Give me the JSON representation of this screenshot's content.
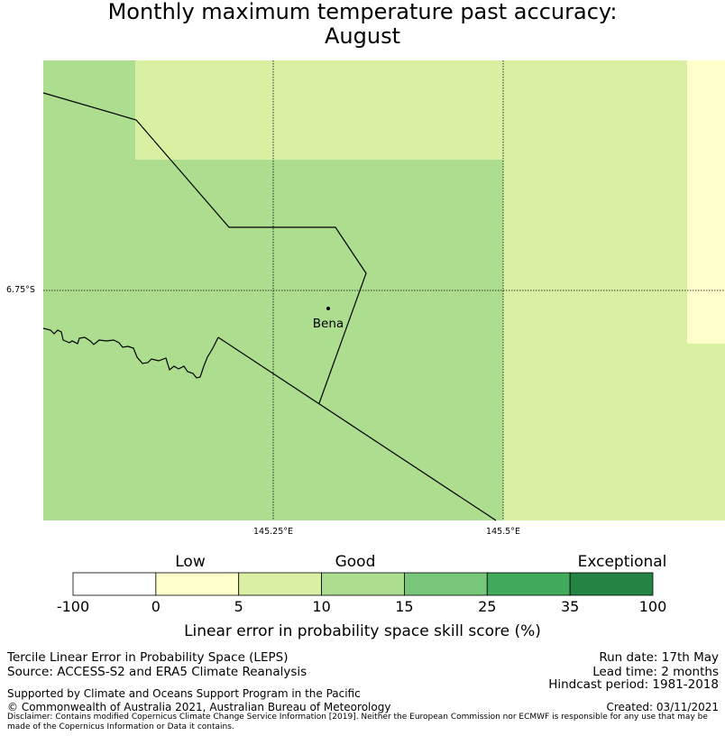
{
  "title": {
    "line1": "Monthly maximum temperature past accuracy:",
    "line2": "August"
  },
  "map": {
    "grid_labels": {
      "lon1": "145.25°E",
      "lon2": "145.5°E",
      "lat1": "6.75°S"
    },
    "place": "Bena",
    "cell_colors": {
      "low": "#ffffcc",
      "good_5_10": "#d9f0a3",
      "good_10_15": "#addd8e"
    }
  },
  "colorbar": {
    "categories": {
      "low": "Low",
      "good": "Good",
      "exceptional": "Exceptional"
    },
    "ticks": [
      "-100",
      "0",
      "5",
      "10",
      "15",
      "25",
      "35",
      "100"
    ],
    "colors": [
      "#ffffff",
      "#ffffcc",
      "#d9f0a3",
      "#addd8e",
      "#78c679",
      "#41ab5d",
      "#238443"
    ],
    "label": "Linear error in probability space skill score (%)"
  },
  "footer": {
    "left1": "Tercile Linear Error in Probability Space (LEPS)",
    "left2": "Source: ACCESS-S2 and ERA5 Climate Reanalysis",
    "right1": "Run date: 17th May",
    "right2": "Lead time: 2 months",
    "right3": "Hindcast period: 1981-2018",
    "supported": "Supported by Climate and Oceans Support Program in the Pacific",
    "copyright": "© Commonwealth of Australia 2021, Australian Bureau of Meteorology",
    "created": "Created: 03/11/2021",
    "disclaimer": "Disclaimer: Contains modified Copernicus Climate Change Service Information [2019]. Neither the European Commission nor ECMWF is responsible for any use that may be made of the Copernicus Information or Data it contains."
  }
}
